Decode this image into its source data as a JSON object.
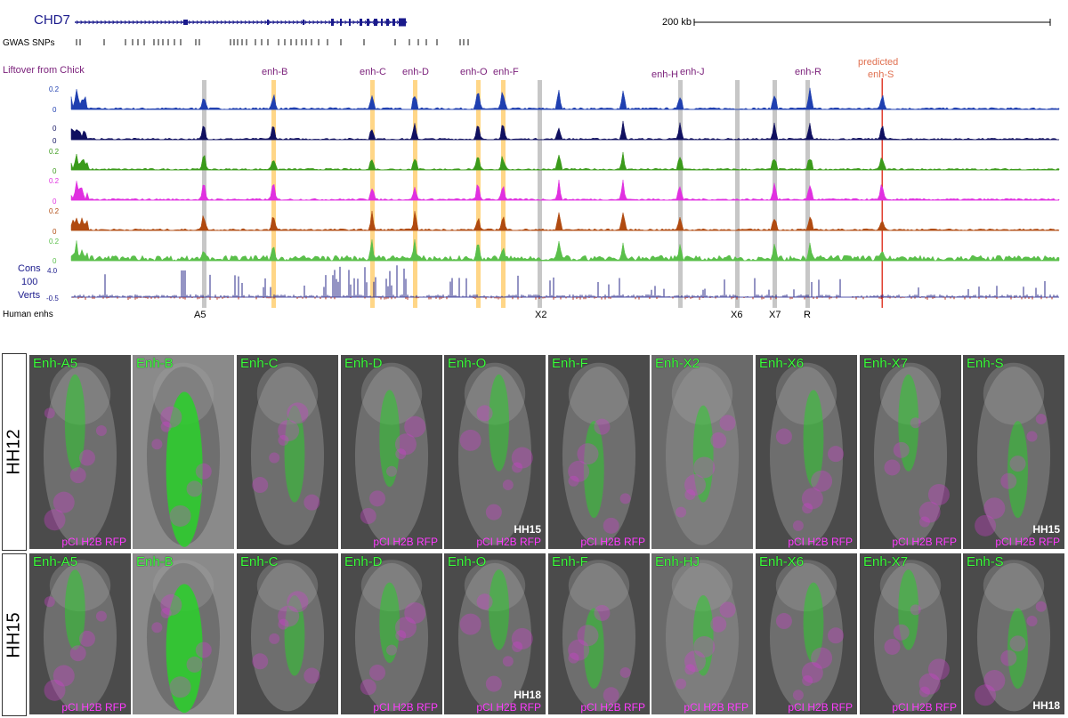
{
  "browser": {
    "gene_label": "CHD7",
    "scale_label": "200 kb",
    "gwas_label": "GWAS SNPs",
    "liftover_label": "Liftover from Chick",
    "predicted_label_line1": "predicted",
    "predicted_label_line2": "enh-S",
    "enh_labels": [
      "enh-B",
      "enh-C",
      "enh-D",
      "enh-O",
      "enh-F",
      "enh-H",
      "enh-J",
      "enh-R"
    ],
    "human_enhs_label": "Human enhs",
    "human_enh_labels": [
      "A5",
      "X2",
      "X6",
      "X7",
      "R"
    ],
    "cons_label_lines": [
      "Cons",
      "100",
      "Verts"
    ],
    "cons_scale": [
      "4.0",
      "-0.5"
    ],
    "track_scale_top": [
      "0.2",
      "0",
      "0.2",
      "0.2",
      "0.2",
      "0.2"
    ],
    "track_scale_bottom": [
      "0",
      "0",
      "0",
      "0",
      "0",
      "0"
    ],
    "colors": {
      "gene": "#1a1a8c",
      "enh_text": "#7a1f7a",
      "predicted_text": "#e07050",
      "orange_highlight": "#ffd27a",
      "grey_highlight": "#bdbdbd",
      "red_line": "#e04030",
      "tracks": [
        "#1f3fb0",
        "#101060",
        "#3a9a1a",
        "#e030e0",
        "#b04a10",
        "#5abf4a"
      ]
    }
  },
  "figure": {
    "rows": [
      {
        "stage": "HH12",
        "panels": [
          {
            "label": "Enh-A5",
            "rfp": "pCI H2B RFP",
            "corner": ""
          },
          {
            "label": "Enh-B",
            "rfp": "",
            "corner": ""
          },
          {
            "label": "Enh-C",
            "rfp": "",
            "corner": ""
          },
          {
            "label": "Enh-D",
            "rfp": "pCI H2B RFP",
            "corner": ""
          },
          {
            "label": "Enh-O",
            "rfp": "pCI H2B RFP",
            "corner": "HH15"
          },
          {
            "label": "Enh-F",
            "rfp": "pCI H2B RFP",
            "corner": ""
          },
          {
            "label": "Enh-X2",
            "rfp": "",
            "corner": ""
          },
          {
            "label": "Enh-X6",
            "rfp": "pCI H2B RFP",
            "corner": ""
          },
          {
            "label": "Enh-X7",
            "rfp": "pCI H2B RFP",
            "corner": ""
          },
          {
            "label": "Enh-S",
            "rfp": "pCI H2B RFP",
            "corner": "HH15"
          }
        ]
      },
      {
        "stage": "HH15",
        "panels": [
          {
            "label": "Enh-A5",
            "rfp": "pCI H2B RFP",
            "corner": ""
          },
          {
            "label": "Enh-B",
            "rfp": "",
            "corner": ""
          },
          {
            "label": "Enh-C",
            "rfp": "",
            "corner": ""
          },
          {
            "label": "Enh-D",
            "rfp": "pCI H2B RFP",
            "corner": ""
          },
          {
            "label": "Enh-O",
            "rfp": "pCI H2B RFP",
            "corner": "HH18"
          },
          {
            "label": "Enh-F",
            "rfp": "pCI H2B RFP",
            "corner": ""
          },
          {
            "label": "Enh-HJ",
            "rfp": "pCI H2B RFP",
            "corner": ""
          },
          {
            "label": "Enh-X6",
            "rfp": "pCI H2B RFP",
            "corner": ""
          },
          {
            "label": "Enh-X7",
            "rfp": "pCI H2B RFP",
            "corner": ""
          },
          {
            "label": "Enh-S",
            "rfp": "",
            "corner": "HH18"
          }
        ]
      }
    ]
  }
}
